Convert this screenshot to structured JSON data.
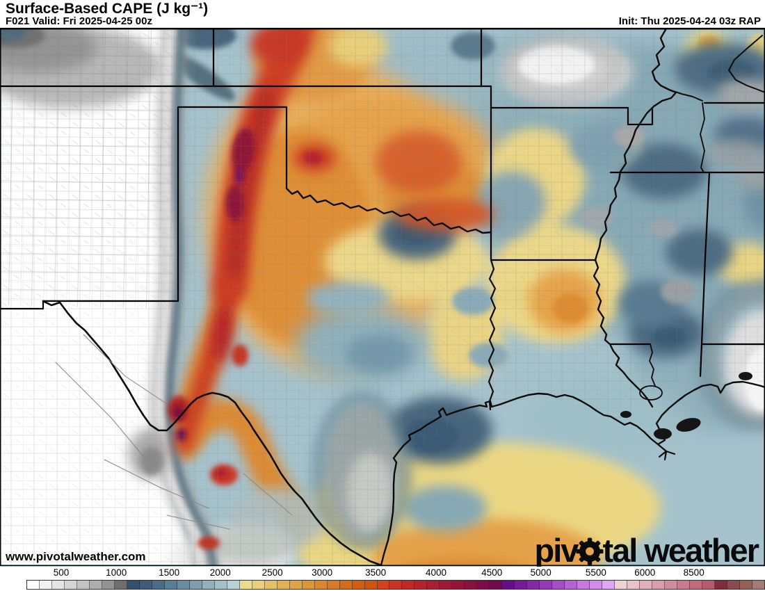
{
  "header": {
    "title": "Surface-Based CAPE (J kg⁻¹)",
    "valid": "F021 Valid: Fri 2025-04-25 00z",
    "init": "Init: Thu 2025-04-24 03z RAP"
  },
  "map": {
    "watermark": "www.pivotalweather.com",
    "logo_pre": "piv",
    "logo_post": "tal weather",
    "logo_gear": "gear-icon"
  },
  "colorbar": {
    "units": "J kg-1",
    "ticks": [
      {
        "label": "500",
        "pct": 8.0
      },
      {
        "label": "1000",
        "pct": 15.2
      },
      {
        "label": "1500",
        "pct": 22.1
      },
      {
        "label": "2000",
        "pct": 28.8
      },
      {
        "label": "2500",
        "pct": 35.6
      },
      {
        "label": "3000",
        "pct": 42.1
      },
      {
        "label": "3500",
        "pct": 49.1
      },
      {
        "label": "4000",
        "pct": 57.0
      },
      {
        "label": "4500",
        "pct": 64.3
      },
      {
        "label": "5000",
        "pct": 70.7
      },
      {
        "label": "5500",
        "pct": 77.9
      },
      {
        "label": "6000",
        "pct": 84.3
      },
      {
        "label": "8500",
        "pct": 90.7
      }
    ],
    "cell_colors": [
      "#fcfcfc",
      "#f1f1f1",
      "#e4e4e4",
      "#d5d5d5",
      "#c3c3c3",
      "#adadad",
      "#939393",
      "#6f6f6f",
      "#31506b",
      "#3c5d7a",
      "#496d89",
      "#587e97",
      "#688da3",
      "#7c9fb0",
      "#91b2bd",
      "#a3c0c8",
      "#b7d2d5",
      "#ecdd8e",
      "#e9cf7a",
      "#e5c065",
      "#e2b252",
      "#dfa445",
      "#dc9638",
      "#d9882c",
      "#d77a22",
      "#d46c19",
      "#d15e11",
      "#ce550d",
      "#d6401e",
      "#c93322",
      "#bf2a26",
      "#b4242b",
      "#aa1f30",
      "#a01a35",
      "#951539",
      "#891140",
      "#7d0d46",
      "#71094c",
      "#660d87",
      "#751b96",
      "#8429a6",
      "#9539b5",
      "#a54dc4",
      "#b662d2",
      "#c578de",
      "#d18ee9",
      "#dda8f2",
      "#edd2d6",
      "#e8c3c9",
      "#e1b1ba",
      "#d89fab",
      "#d08d9c",
      "#c87b8d",
      "#c06a7e",
      "#b65a6e",
      "#7e2d3d",
      "#8a4a52",
      "#966059",
      "#a27a76"
    ]
  },
  "chart_data": {
    "type": "heatmap",
    "title": "Surface-Based CAPE (J kg⁻¹)",
    "forecast_hour": "F021",
    "valid_time": "Fri 2025-04-25 00z",
    "init_time": "Thu 2025-04-24 03z",
    "model": "RAP",
    "scale_ticks": [
      500,
      1000,
      1500,
      2000,
      2500,
      3000,
      3500,
      4000,
      4500,
      5000,
      5500,
      6000,
      8500
    ],
    "legend_position": "bottom"
  }
}
